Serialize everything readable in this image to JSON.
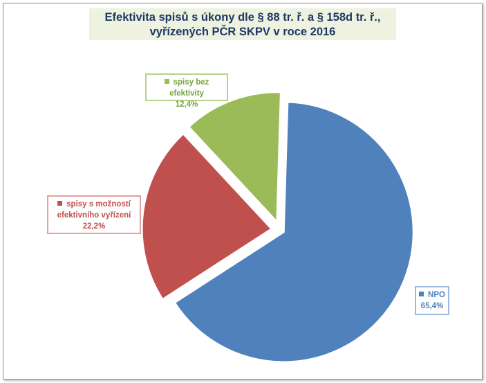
{
  "chart_data": {
    "type": "pie",
    "title_lines": [
      "Efektivita spisů s úkony dle § 88 tr. ř. a § 158d tr. ř.,",
      "vyřízených PČR SKPV v roce 2016"
    ],
    "slices": [
      {
        "name": "NPO",
        "value": 65.4,
        "label": "65,4%",
        "color": "#4f81bd"
      },
      {
        "name": "spisy s možností efektivního vyřízení",
        "value": 22.2,
        "label": "22,2%",
        "color": "#c0504d"
      },
      {
        "name": "spisy bez efektivity",
        "value": 12.4,
        "label": "12,4%",
        "color": "#9bbb59"
      }
    ],
    "legend": "none",
    "data_labels": "outside"
  },
  "labels": {
    "npo_name": "NPO",
    "npo_value": "65,4%",
    "red_name_1": "spisy s možností",
    "red_name_2": "efektivního vyřízení",
    "red_value": "22,2%",
    "green_name": "spisy bez efektivity",
    "green_value": "12,4%"
  }
}
